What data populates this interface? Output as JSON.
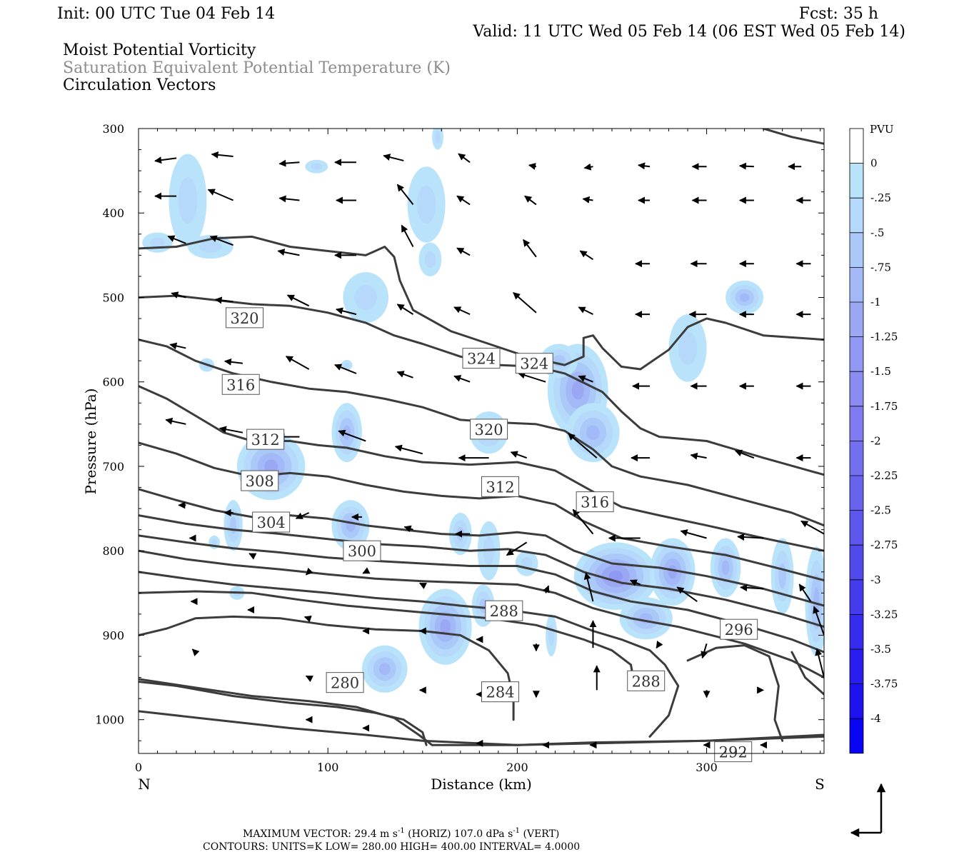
{
  "header": {
    "init": "Init: 00 UTC Tue 04 Feb 14",
    "fcst": "Fcst:   35 h",
    "valid": "Valid: 11 UTC Wed 05 Feb 14 (06 EST Wed 05 Feb 14)",
    "fields": [
      {
        "text": "Moist Potential Vorticity",
        "color": "#000000"
      },
      {
        "text": "Saturation Equivalent Potential Temperature (K)",
        "color": "#8c8c8c"
      },
      {
        "text": "Circulation Vectors",
        "color": "#000000"
      }
    ]
  },
  "chart_data": {
    "type": "contour",
    "x_axis": {
      "label": "Distance (km)",
      "range": [
        0,
        362
      ],
      "ticks": [
        0,
        100,
        200,
        300
      ],
      "end_labels": {
        "left": "N",
        "right": "S"
      }
    },
    "y_axis": {
      "label": "Pressure (hPa)",
      "range": [
        300,
        1040
      ],
      "ticks": [
        300,
        400,
        500,
        600,
        700,
        800,
        900,
        1000
      ],
      "inverted": true
    },
    "colorbar": {
      "units": "PVU",
      "levels": [
        "0",
        "-.25",
        "-.5",
        "-.75",
        "-1",
        "-1.25",
        "-1.5",
        "-1.75",
        "-2",
        "-2.25",
        "-2.5",
        "-2.75",
        "-3",
        "-3.25",
        "-3.5",
        "-3.75",
        "-4"
      ],
      "colors": [
        "#ffffff",
        "#b9e3fb",
        "#b5d8fb",
        "#aac8f8",
        "#a3b8f7",
        "#9aa8f4",
        "#9098f3",
        "#8a8cf1",
        "#7e7cf0",
        "#7270ef",
        "#6763ee",
        "#5c56ed",
        "#5049ec",
        "#443bec",
        "#362ced",
        "#2a1eee",
        "#1e12ef",
        "#0a04f4"
      ]
    },
    "contour_labels": [
      {
        "text": "320",
        "x": 56,
        "p": 524
      },
      {
        "text": "324",
        "x": 181,
        "p": 572
      },
      {
        "text": "324",
        "x": 209,
        "p": 578
      },
      {
        "text": "316",
        "x": 54,
        "p": 603
      },
      {
        "text": "320",
        "x": 185,
        "p": 656
      },
      {
        "text": "312",
        "x": 67,
        "p": 668
      },
      {
        "text": "308",
        "x": 64,
        "p": 717
      },
      {
        "text": "312",
        "x": 191,
        "p": 724
      },
      {
        "text": "316",
        "x": 241,
        "p": 742
      },
      {
        "text": "304",
        "x": 70,
        "p": 766
      },
      {
        "text": "300",
        "x": 118,
        "p": 800
      },
      {
        "text": "288",
        "x": 193,
        "p": 871
      },
      {
        "text": "296",
        "x": 317,
        "p": 893
      },
      {
        "text": "280",
        "x": 109,
        "p": 956
      },
      {
        "text": "288",
        "x": 268,
        "p": 954
      },
      {
        "text": "284",
        "x": 191,
        "p": 967
      },
      {
        "text": "292",
        "x": 314,
        "p": 1038
      }
    ],
    "contour_settings": {
      "units": "K",
      "low": 280.0,
      "high": 400.0,
      "interval": 4.0
    },
    "max_vector": {
      "horizontal": "29.4 m s-1",
      "vertical": "107.0 dPa s-1"
    }
  },
  "footer": {
    "max_vector_prefix": "MAXIMUM VECTOR:  29.4 m s",
    "max_vector_mid": " (HORIZ)        107.0 dPa s",
    "max_vector_end": " (VERT)",
    "exp": "-1",
    "contours": "CONTOURS:  UNITS=K  LOW=   280.00       HIGH=   400.00       INTERVAL=     4.0000"
  }
}
